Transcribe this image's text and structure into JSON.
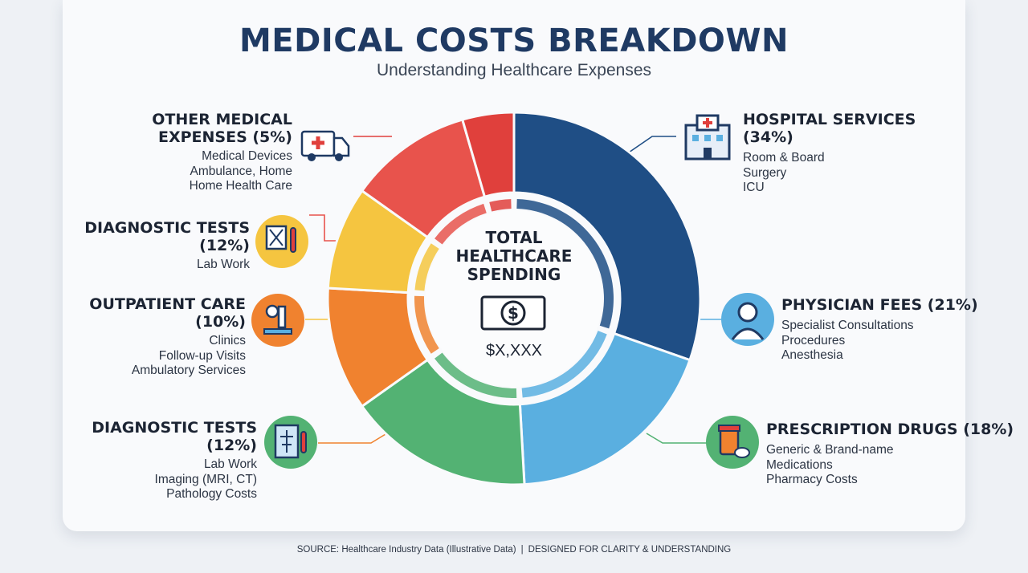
{
  "title": "MEDICAL COSTS BREAKDOWN",
  "subtitle": "Understanding Healthcare Expenses",
  "center": {
    "title_lines": [
      "TOTAL",
      "HEALTHCARE",
      "SPENDING"
    ],
    "total": "$X,XXX"
  },
  "footer": {
    "source": "SOURCE: Healthcare Industry Data (Illustrative Data)",
    "separator": "|",
    "note": "DESIGNED FOR CLARITY & UNDERSTANDING"
  },
  "labels": {
    "hospital": {
      "name_lines": [
        "HOSPITAL SERVICES",
        "(34%)"
      ],
      "items": [
        "Room & Board",
        "Surgery",
        "ICU"
      ]
    },
    "physician": {
      "name_lines": [
        "PHYSICIAN FEES (21%)"
      ],
      "items": [
        "Specialist Consultations",
        "Procedures",
        "Anesthesia"
      ]
    },
    "prescription": {
      "name_lines": [
        "PRESCRIPTION DRUGS (18%)"
      ],
      "items": [
        "Generic & Brand-name",
        "Medications",
        "Pharmacy Costs"
      ]
    },
    "diagnostic_lower": {
      "name_lines": [
        "DIAGNOSTIC TESTS",
        "(12%)"
      ],
      "items": [
        "Lab Work",
        "Imaging (MRI, CT)",
        "Pathology Costs"
      ]
    },
    "outpatient": {
      "name_lines": [
        "OUTPATIENT CARE",
        "(10%)"
      ],
      "items": [
        "Clinics",
        "Follow-up Visits",
        "Ambulatory Services"
      ]
    },
    "diagnostic_upper": {
      "name_lines": [
        "DIAGNOSTIC TESTS",
        "(12%)"
      ],
      "items": [
        "Lab Work"
      ]
    },
    "other": {
      "name_lines": [
        "OTHER MEDICAL",
        "EXPENSES (5%)"
      ],
      "items": [
        "Medical Devices",
        "Ambulance, Home",
        "Home Health Care"
      ]
    }
  },
  "chart_data": {
    "type": "pie",
    "variant": "donut",
    "start": "top",
    "direction": "clockwise",
    "categories": [
      "Hospital Services",
      "Physician Fees",
      "Prescription Drugs",
      "Diagnostic Tests",
      "Outpatient Care",
      "Diagnostic Tests",
      "Other Medical Expenses"
    ],
    "values": [
      34,
      21,
      18,
      12,
      10,
      12,
      5
    ],
    "colors": [
      "#1f4e85",
      "#5aafe0",
      "#53b273",
      "#f0822f",
      "#f5c540",
      "#e8534c",
      "#e0403c"
    ],
    "value_unit": "%"
  }
}
